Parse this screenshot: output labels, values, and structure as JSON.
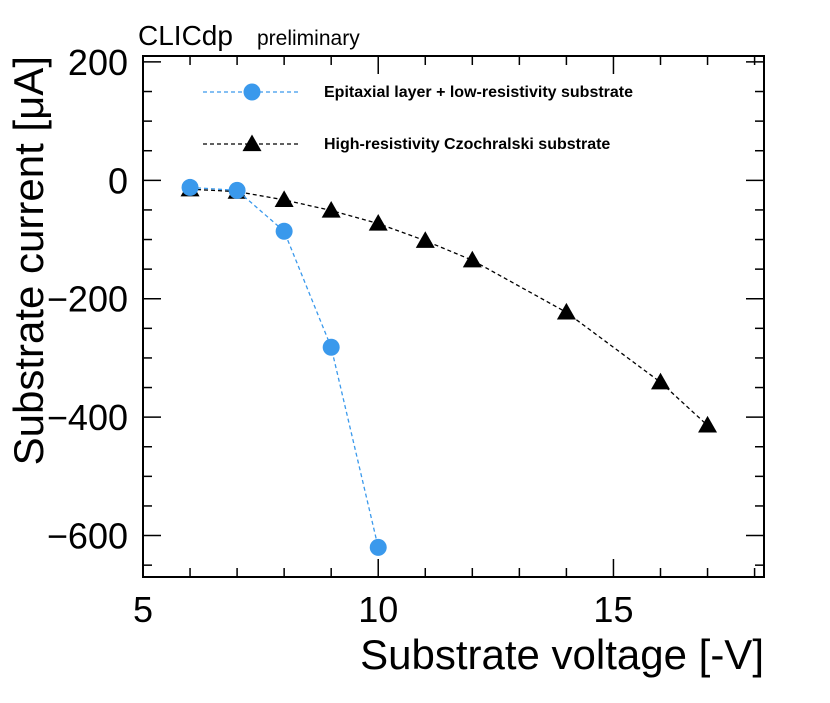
{
  "chart_data": {
    "type": "line",
    "brand": "CLICdp",
    "status": "preliminary",
    "xlabel": "Substrate voltage [-V]",
    "ylabel": "Substrate current [μA]",
    "xlim": [
      5,
      18.2
    ],
    "ylim": [
      -670,
      210
    ],
    "x_ticks": [
      5,
      10,
      15
    ],
    "y_ticks": [
      200,
      0,
      -200,
      -400,
      -600
    ],
    "x_tick_labels": [
      "5",
      "10",
      "15"
    ],
    "y_tick_labels": [
      "200",
      "0",
      "−200",
      "−400",
      "−600"
    ],
    "legend_position": "top",
    "series": [
      {
        "name": "Epitaxial layer + low-resistivity substrate",
        "marker": "circle",
        "line": "dashed",
        "color": "#3a99ec",
        "x": [
          6,
          7,
          8,
          9,
          10
        ],
        "y": [
          -12,
          -17,
          -86,
          -282,
          -620
        ]
      },
      {
        "name": "High-resistivity Czochralski substrate",
        "marker": "triangle",
        "line": "dashed",
        "color": "#000000",
        "x": [
          6,
          7,
          8,
          9,
          10,
          11,
          12,
          14,
          16,
          17
        ],
        "y": [
          -15,
          -19,
          -33,
          -51,
          -73,
          -102,
          -135,
          -223,
          -341,
          -414
        ]
      }
    ]
  }
}
